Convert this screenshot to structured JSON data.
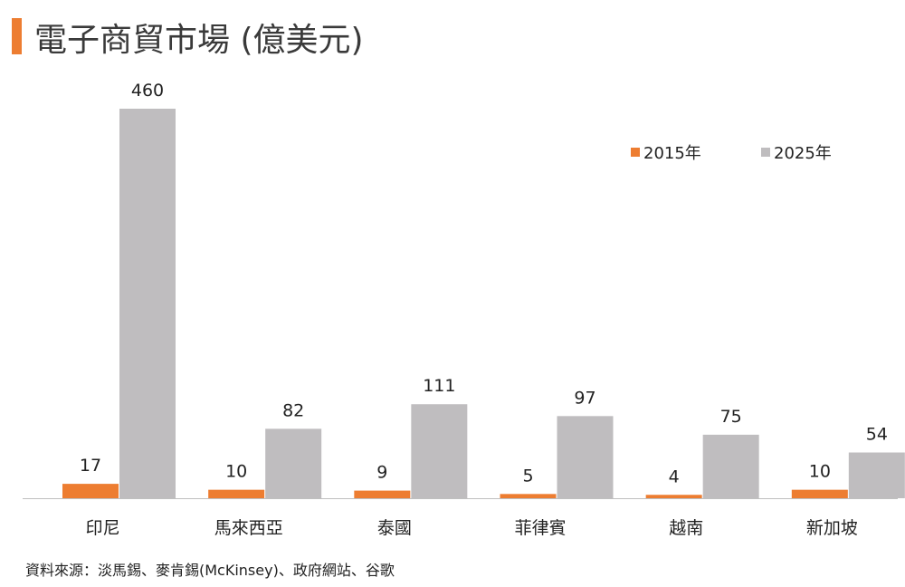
{
  "title": "電子商貿市場 (億美元)",
  "source": "資料來源：淡馬錫、麥肯錫(McKinsey)、政府網站、谷歌",
  "colors": {
    "accent": "#ed7d31",
    "series_2015": "#ed7d31",
    "series_2025": "#bfbdbf",
    "axis": "#bfbfbf",
    "text": "#222222"
  },
  "chart_data": {
    "type": "bar",
    "categories": [
      "印尼",
      "馬來西亞",
      "泰國",
      "菲律賓",
      "越南",
      "新加坡"
    ],
    "series": [
      {
        "name": "2015年",
        "values": [
          17,
          10,
          9,
          5,
          4,
          10
        ]
      },
      {
        "name": "2025年",
        "values": [
          460,
          82,
          111,
          97,
          75,
          54
        ]
      }
    ],
    "ylim": [
      0,
      460
    ],
    "grid": false,
    "legend": "top-right",
    "data_labels": true
  }
}
